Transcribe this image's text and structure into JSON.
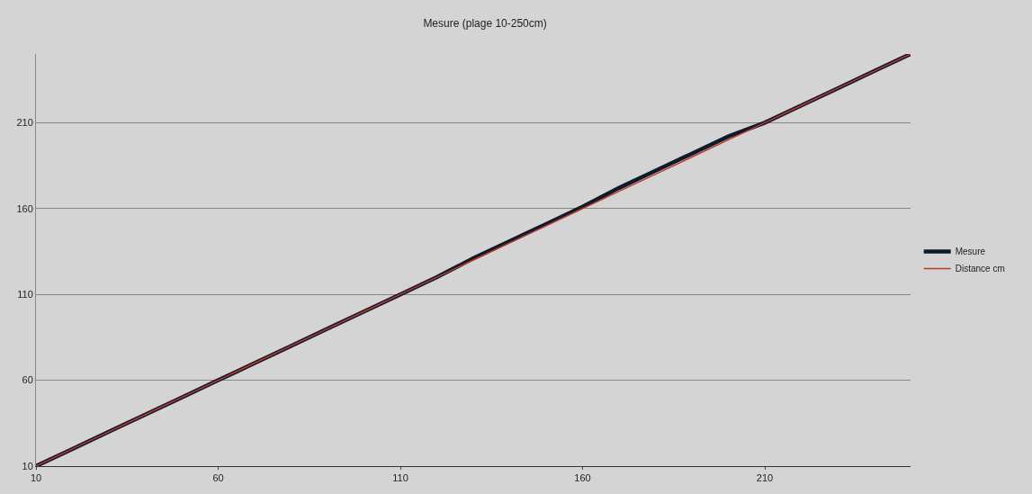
{
  "chart_data": {
    "type": "line",
    "title": "Mesure (plage 10-250cm)",
    "x": [
      10,
      20,
      30,
      40,
      50,
      60,
      70,
      80,
      90,
      100,
      110,
      120,
      130,
      140,
      150,
      160,
      170,
      180,
      190,
      200,
      210,
      220,
      230,
      240,
      250
    ],
    "series": [
      {
        "name": "Mesure",
        "color": "#0d1b2a",
        "values": [
          10,
          20,
          30,
          40,
          50,
          60,
          70,
          80,
          90,
          100,
          110,
          120,
          131,
          141,
          151,
          161,
          172,
          182,
          192,
          202,
          210,
          220,
          230,
          240,
          250
        ]
      },
      {
        "name": "Distance cm",
        "color": "#c0392b",
        "values": [
          10,
          20,
          30,
          40,
          50,
          60,
          70,
          80,
          90,
          100,
          110,
          120,
          130,
          140,
          150,
          160,
          170,
          180,
          190,
          200,
          210,
          220,
          230,
          240,
          250
        ]
      }
    ],
    "xlim": [
      10,
      250
    ],
    "ylim": [
      10,
      250
    ],
    "xticks": [
      10,
      60,
      110,
      160,
      210
    ],
    "yticks": [
      10,
      60,
      110,
      160,
      210
    ],
    "grid": "y",
    "legend": "right",
    "marker": "none",
    "line_style": "solid"
  }
}
